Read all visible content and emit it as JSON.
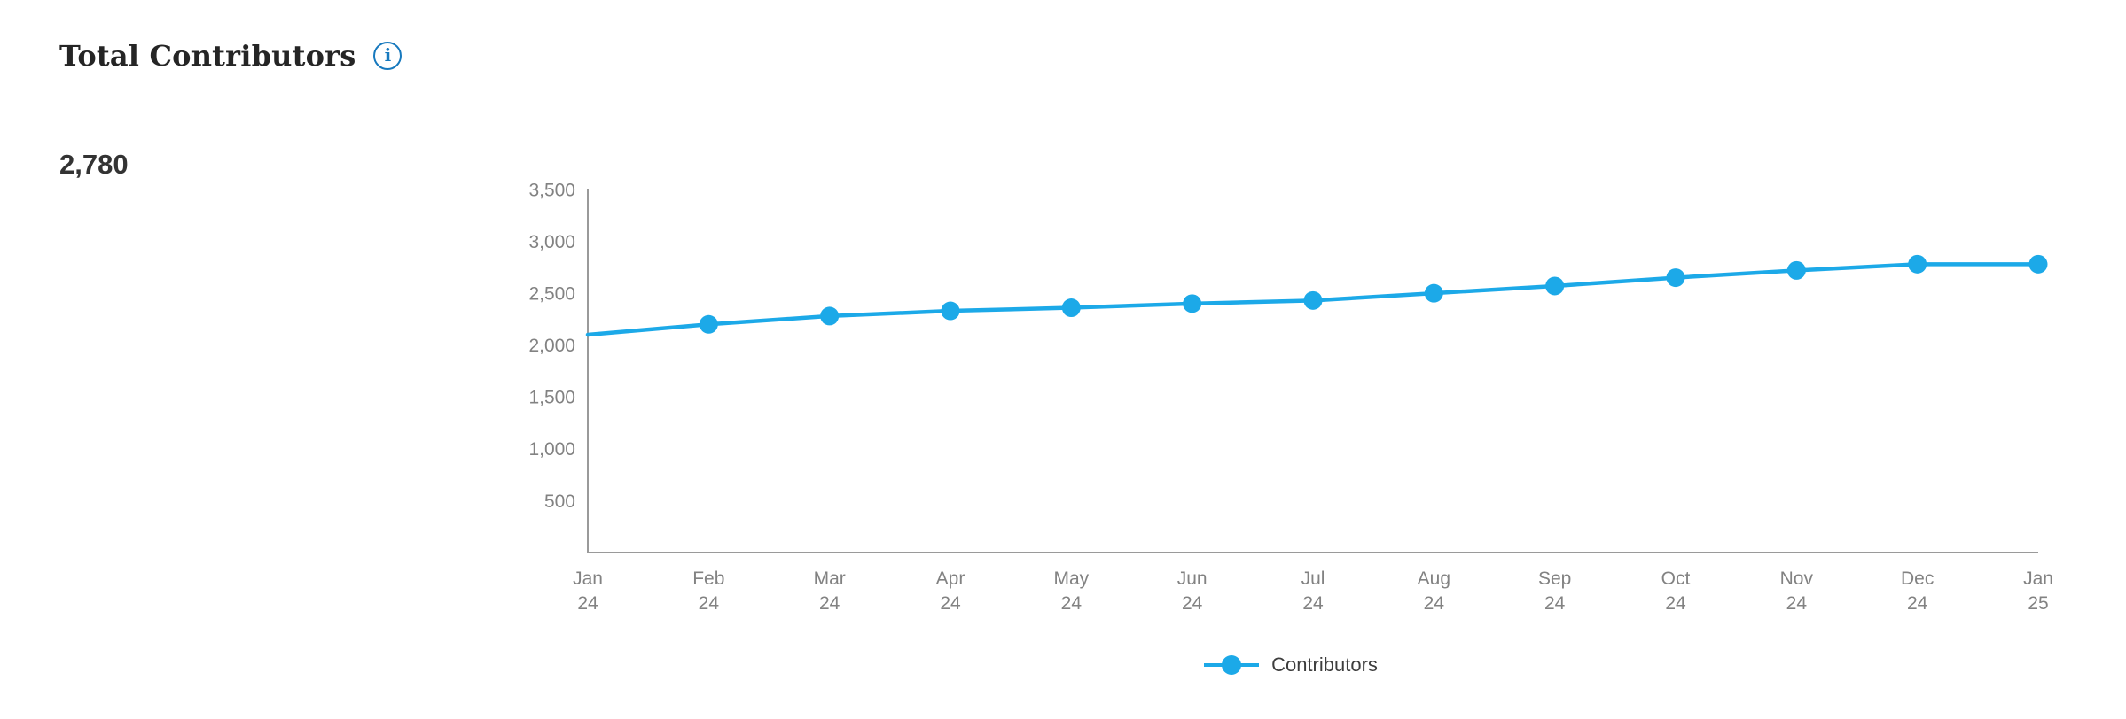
{
  "card": {
    "title": "Total Contributors",
    "metric_value": "2,780"
  },
  "icons": {
    "info": "i"
  },
  "colors": {
    "line": "#1ca9e8",
    "axis": "#9a9a9a",
    "tick_text": "#828282",
    "title_text": "#252525",
    "metric_text": "#333333",
    "legend_text": "#3d3d3d",
    "info_icon": "#1779be",
    "background": "#ffffff"
  },
  "chart_data": {
    "type": "line",
    "title": "Total Contributors",
    "xlabel": "",
    "ylabel": "",
    "ylim": [
      0,
      3500
    ],
    "grid": false,
    "legend_position": "bottom",
    "yticks": [
      {
        "value": 500,
        "label": "500"
      },
      {
        "value": 1000,
        "label": "1,000"
      },
      {
        "value": 1500,
        "label": "1,500"
      },
      {
        "value": 2000,
        "label": "2,000"
      },
      {
        "value": 2500,
        "label": "2,500"
      },
      {
        "value": 3000,
        "label": "3,000"
      },
      {
        "value": 3500,
        "label": "3,500"
      }
    ],
    "categories": [
      {
        "month": "Jan",
        "year": "24"
      },
      {
        "month": "Feb",
        "year": "24"
      },
      {
        "month": "Mar",
        "year": "24"
      },
      {
        "month": "Apr",
        "year": "24"
      },
      {
        "month": "May",
        "year": "24"
      },
      {
        "month": "Jun",
        "year": "24"
      },
      {
        "month": "Jul",
        "year": "24"
      },
      {
        "month": "Aug",
        "year": "24"
      },
      {
        "month": "Sep",
        "year": "24"
      },
      {
        "month": "Oct",
        "year": "24"
      },
      {
        "month": "Nov",
        "year": "24"
      },
      {
        "month": "Dec",
        "year": "24"
      },
      {
        "month": "Jan",
        "year": "25"
      }
    ],
    "series": [
      {
        "name": "Contributors",
        "values": [
          2100,
          2200,
          2280,
          2330,
          2360,
          2400,
          2430,
          2500,
          2570,
          2650,
          2720,
          2780,
          2780
        ]
      }
    ]
  }
}
